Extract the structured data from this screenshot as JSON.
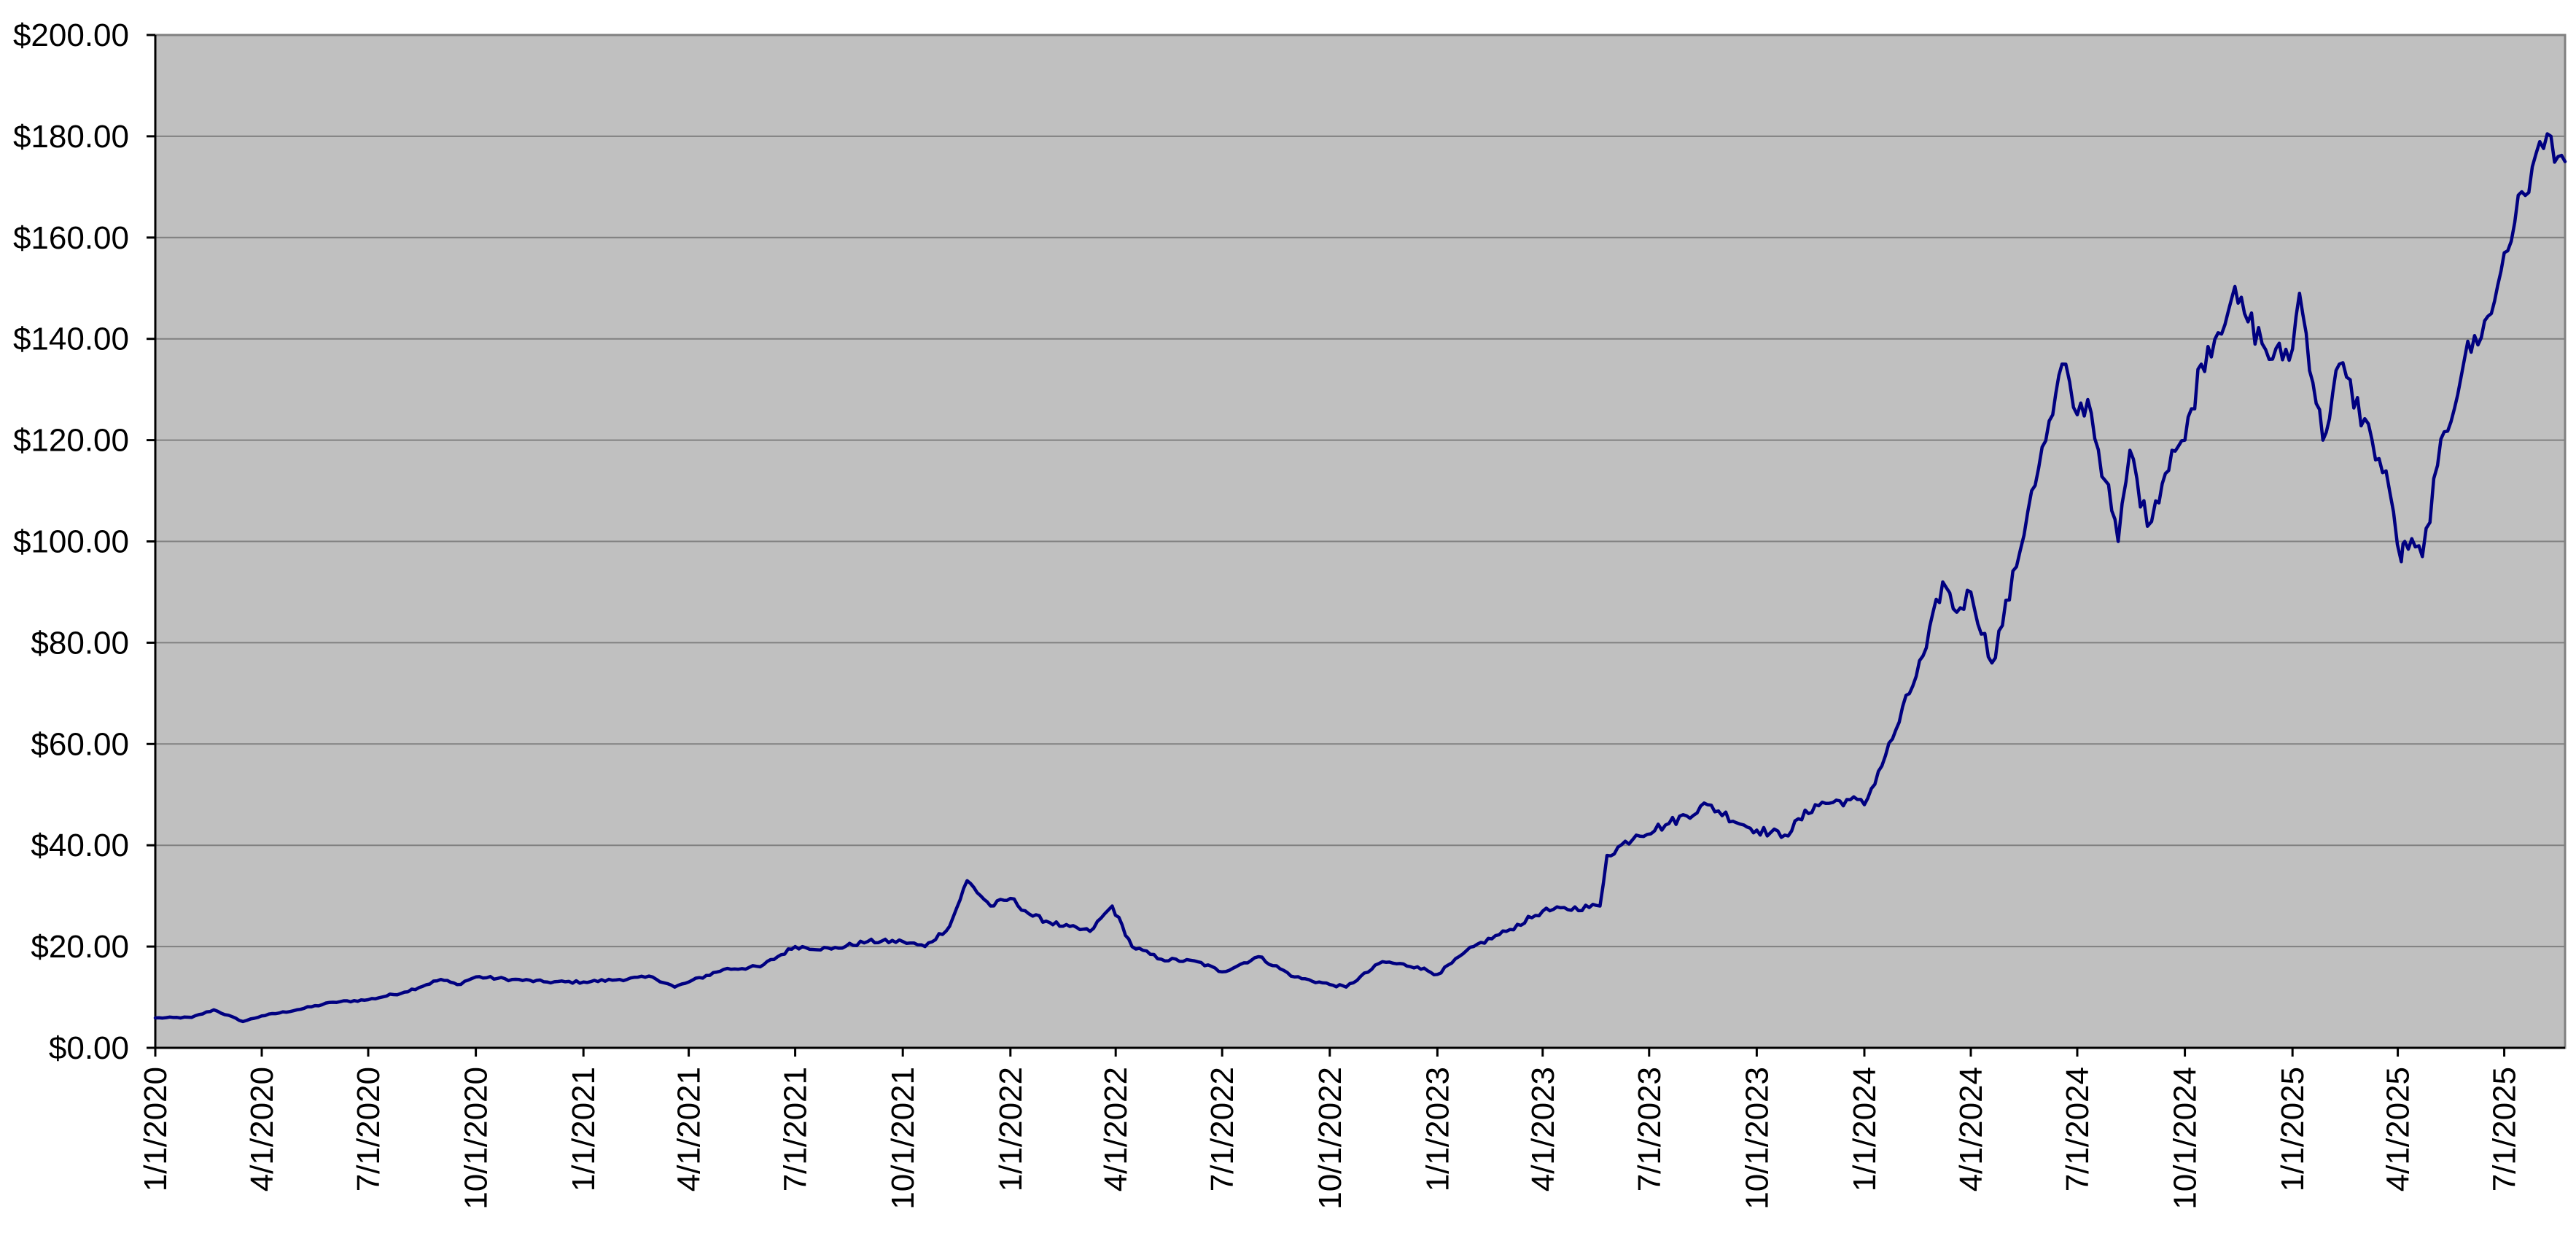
{
  "chart_data": {
    "type": "line",
    "title": "",
    "xlabel": "",
    "ylabel": "",
    "x_axis_type": "date",
    "xlim": [
      "2020-01-01",
      "2025-08-22"
    ],
    "ylim": [
      0,
      200
    ],
    "y_ticks": [
      0,
      20,
      40,
      60,
      80,
      100,
      120,
      140,
      160,
      180,
      200
    ],
    "y_tick_labels": [
      "$0.00",
      "$20.00",
      "$40.00",
      "$60.00",
      "$80.00",
      "$100.00",
      "$120.00",
      "$140.00",
      "$160.00",
      "$180.00",
      "$200.00"
    ],
    "x_ticks": [
      "2020-01-01",
      "2020-04-01",
      "2020-07-01",
      "2020-10-01",
      "2021-01-01",
      "2021-04-01",
      "2021-07-01",
      "2021-10-01",
      "2022-01-01",
      "2022-04-01",
      "2022-07-01",
      "2022-10-01",
      "2023-01-01",
      "2023-04-01",
      "2023-07-01",
      "2023-10-01",
      "2024-01-01",
      "2024-04-01",
      "2024-07-01",
      "2024-10-01",
      "2025-01-01",
      "2025-04-01",
      "2025-07-01"
    ],
    "x_tick_labels": [
      "1/1/2020",
      "4/1/2020",
      "7/1/2020",
      "10/1/2020",
      "1/1/2021",
      "4/1/2021",
      "7/1/2021",
      "10/1/2021",
      "1/1/2022",
      "4/1/2022",
      "7/1/2022",
      "10/1/2022",
      "1/1/2023",
      "4/1/2023",
      "7/1/2023",
      "10/1/2023",
      "1/1/2024",
      "4/1/2024",
      "7/1/2024",
      "10/1/2024",
      "1/1/2025",
      "4/1/2025",
      "7/1/2025"
    ],
    "grid": true,
    "legend": "none",
    "series": [
      {
        "color": "#000080",
        "x": [
          "2020-01-01",
          "2020-02-01",
          "2020-02-20",
          "2020-03-16",
          "2020-04-01",
          "2020-05-01",
          "2020-06-01",
          "2020-07-01",
          "2020-08-01",
          "2020-09-01",
          "2020-09-15",
          "2020-10-01",
          "2020-11-01",
          "2020-12-01",
          "2021-01-01",
          "2021-02-01",
          "2021-03-01",
          "2021-03-20",
          "2021-04-01",
          "2021-05-01",
          "2021-06-01",
          "2021-07-01",
          "2021-08-01",
          "2021-09-01",
          "2021-10-01",
          "2021-10-20",
          "2021-11-10",
          "2021-11-25",
          "2021-12-15",
          "2022-01-01",
          "2022-01-20",
          "2022-02-15",
          "2022-03-10",
          "2022-03-29",
          "2022-04-15",
          "2022-05-10",
          "2022-06-10",
          "2022-07-01",
          "2022-08-01",
          "2022-09-01",
          "2022-10-01",
          "2022-10-15",
          "2022-11-15",
          "2022-12-15",
          "2023-01-01",
          "2023-02-01",
          "2023-03-01",
          "2023-04-01",
          "2023-05-20",
          "2023-05-26",
          "2023-06-20",
          "2023-07-15",
          "2023-08-20",
          "2023-09-20",
          "2023-10-01",
          "2023-10-25",
          "2023-11-20",
          "2023-12-20",
          "2024-01-01",
          "2024-01-25",
          "2024-02-23",
          "2024-03-08",
          "2024-03-20",
          "2024-04-01",
          "2024-04-19",
          "2024-05-10",
          "2024-05-23",
          "2024-06-10",
          "2024-06-18",
          "2024-07-01",
          "2024-07-10",
          "2024-07-25",
          "2024-08-05",
          "2024-08-15",
          "2024-08-30",
          "2024-09-06",
          "2024-09-20",
          "2024-10-01",
          "2024-10-15",
          "2024-11-10",
          "2024-11-21",
          "2024-12-15",
          "2025-01-01",
          "2025-01-07",
          "2025-01-27",
          "2025-02-10",
          "2025-03-10",
          "2025-03-25",
          "2025-04-04",
          "2025-04-07",
          "2025-04-22",
          "2025-05-05",
          "2025-05-28",
          "2025-06-20",
          "2025-07-01",
          "2025-07-10",
          "2025-07-25",
          "2025-08-10",
          "2025-08-22"
        ],
        "values": [
          5.9,
          6.0,
          7.5,
          5.2,
          6.3,
          7.5,
          9.0,
          9.5,
          11.0,
          13.5,
          12.5,
          14.0,
          13.5,
          13.0,
          13.0,
          13.5,
          14.0,
          12.0,
          13.0,
          15.5,
          16.0,
          20.0,
          19.5,
          21.0,
          21.0,
          20.0,
          24.0,
          33.0,
          28.0,
          29.5,
          26.0,
          24.0,
          23.0,
          28.0,
          20.0,
          17.5,
          17.0,
          15.0,
          18.0,
          14.0,
          12.5,
          12.0,
          17.0,
          16.0,
          14.5,
          20.0,
          23.0,
          27.0,
          28.0,
          38.0,
          42.0,
          44.0,
          48.0,
          44.0,
          43.0,
          42.0,
          48.0,
          49.0,
          48.0,
          61.0,
          79.0,
          92.0,
          86.0,
          90.0,
          76.0,
          95.0,
          110.0,
          125.0,
          135.0,
          125.0,
          128.0,
          112.0,
          100.0,
          118.0,
          103.0,
          108.0,
          118.0,
          120.0,
          135.0,
          148.0,
          145.0,
          136.0,
          138.0,
          149.0,
          120.0,
          135.0,
          120.0,
          110.0,
          96.0,
          100.0,
          97.0,
          115.0,
          136.0,
          145.0,
          157.0,
          163.0,
          174.0,
          180.0,
          175.0
        ]
      }
    ]
  }
}
